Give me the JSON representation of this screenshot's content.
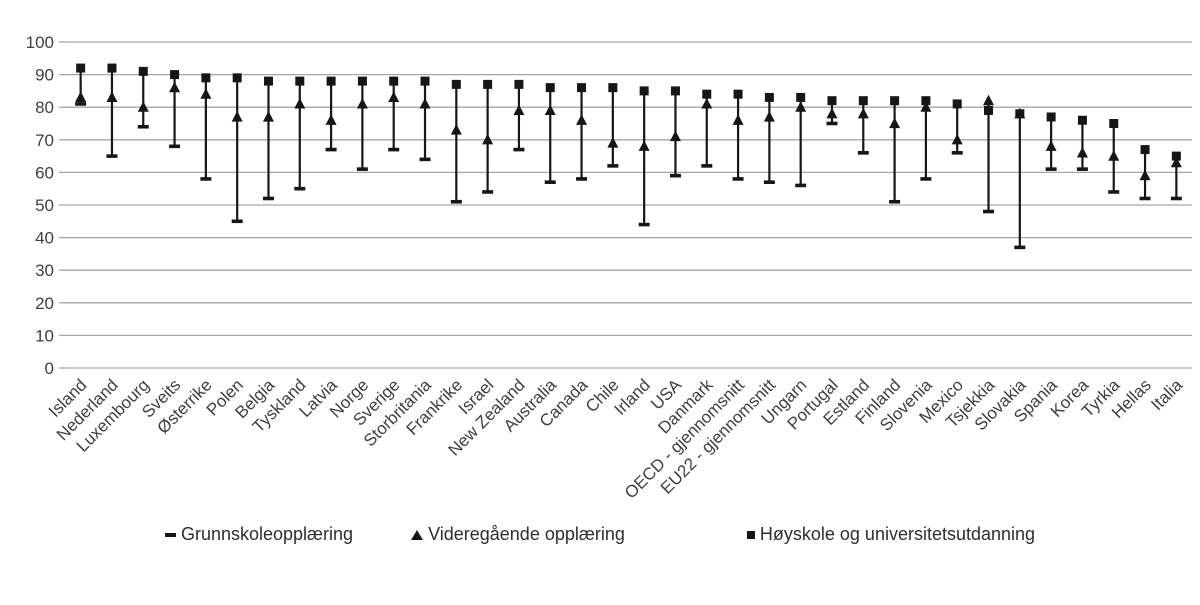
{
  "chart_data": {
    "type": "scatter",
    "variant": "high-low-lines-with-markers",
    "title": "",
    "xlabel": "",
    "ylabel": "",
    "ylim": [
      0,
      100
    ],
    "ytick_step": 10,
    "ytick_labels": [
      "0",
      "10",
      "20",
      "30",
      "40",
      "50",
      "60",
      "70",
      "80",
      "90",
      "100"
    ],
    "grid": true,
    "legend_position": "bottom",
    "colors": {
      "marker": "#161616",
      "grid": "#a6a6a6",
      "axis_text": "#404040"
    },
    "categories": [
      "Island",
      "Nederland",
      "Luxembourg",
      "Sveits",
      "Østerrike",
      "Polen",
      "Belgia",
      "Tyskland",
      "Latvia",
      "Norge",
      "Sverige",
      "Storbritania",
      "Frankrike",
      "Israel",
      "New Zealand",
      "Australia",
      "Canada",
      "Chile",
      "Irland",
      "USA",
      "Danmark",
      "OECD - gjennomsnitt",
      "EU22 - gjennomsnitt",
      "Ungarn",
      "Portugal",
      "Estland",
      "Finland",
      "Slovenia",
      "Mexico",
      "Tsjekkia",
      "Slovakia",
      "Spania",
      "Korea",
      "Tyrkia",
      "Hellas",
      "Italia"
    ],
    "series": [
      {
        "name": "Grunnskoleopplæring",
        "marker": "dash",
        "values": [
          81,
          65,
          74,
          68,
          58,
          45,
          52,
          55,
          67,
          61,
          67,
          64,
          51,
          54,
          67,
          57,
          58,
          62,
          44,
          59,
          62,
          58,
          57,
          56,
          75,
          66,
          51,
          58,
          66,
          48,
          37,
          61,
          61,
          54,
          52,
          52
        ]
      },
      {
        "name": "Videregående opplæring",
        "marker": "triangle",
        "values": [
          83,
          83,
          80,
          86,
          84,
          77,
          77,
          81,
          76,
          81,
          83,
          81,
          73,
          70,
          79,
          79,
          76,
          69,
          68,
          71,
          81,
          76,
          77,
          80,
          78,
          78,
          75,
          80,
          70,
          82,
          78,
          68,
          66,
          65,
          59,
          63
        ]
      },
      {
        "name": "Høyskole og universitetsutdanning",
        "marker": "square",
        "values": [
          92,
          92,
          91,
          90,
          89,
          89,
          88,
          88,
          88,
          88,
          88,
          88,
          87,
          87,
          87,
          86,
          86,
          86,
          85,
          85,
          84,
          84,
          83,
          83,
          82,
          82,
          82,
          82,
          81,
          79,
          78,
          77,
          76,
          75,
          67,
          65
        ]
      }
    ]
  },
  "legend": {
    "items": [
      {
        "label": "Grunnskoleopplæring",
        "marker": "dash-icon"
      },
      {
        "label": "Videregående opplæring",
        "marker": "triangle-icon"
      },
      {
        "label": "Høyskole og universitetsutdanning",
        "marker": "square-icon"
      }
    ]
  }
}
